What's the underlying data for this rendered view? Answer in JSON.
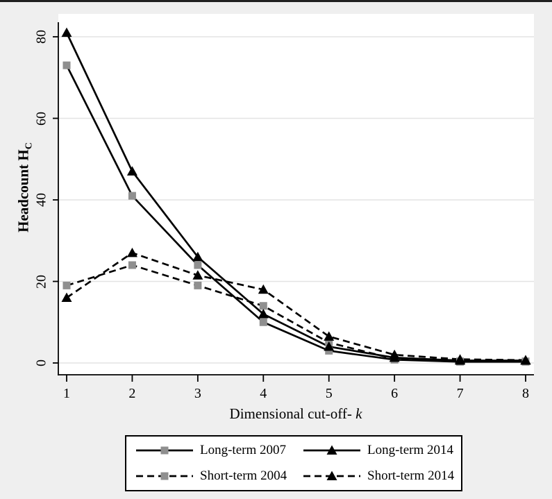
{
  "colors": {
    "background": "#efefef",
    "plot_bg": "#ffffff",
    "grid": "#e3e3e3",
    "axis": "#000000",
    "line": "#000000",
    "square_marker": "#8f8f8f",
    "triangle_marker": "#000000",
    "top_border": "#1f1f1f",
    "legend_bg": "#ffffff",
    "legend_border": "#000000"
  },
  "chart_data": {
    "type": "line",
    "title": "",
    "xlabel": "Dimensional cut-off- k",
    "ylabel": "Headcount Hc",
    "x": [
      1,
      2,
      3,
      4,
      5,
      6,
      7,
      8
    ],
    "xticks": [
      1,
      2,
      3,
      4,
      5,
      6,
      7,
      8
    ],
    "yticks": [
      0,
      20,
      40,
      60,
      80
    ],
    "xtick_labels": [
      "1",
      "2",
      "3",
      "4",
      "5",
      "6",
      "7",
      "8"
    ],
    "ytick_labels": [
      "0",
      "20",
      "40",
      "60",
      "80"
    ],
    "ylim": [
      -3,
      86
    ],
    "grid": true,
    "legend_position": "bottom",
    "series": [
      {
        "name": "Long-term 2007",
        "style": "solid",
        "marker": "square",
        "marker_color": "#8f8f8f",
        "values": [
          73,
          41,
          24,
          10,
          3,
          0.8,
          0.3,
          0.3
        ]
      },
      {
        "name": "Short-term 2004",
        "style": "dashed",
        "marker": "square",
        "marker_color": "#8f8f8f",
        "values": [
          19,
          24,
          19,
          14,
          5,
          1,
          0.4,
          0.4
        ]
      },
      {
        "name": "Long-term 2014",
        "style": "solid",
        "marker": "triangle",
        "marker_color": "#000000",
        "values": [
          81,
          47,
          26,
          12,
          4,
          1.3,
          0.6,
          0.6
        ]
      },
      {
        "name": "Short-term 2014",
        "style": "dashed",
        "marker": "triangle",
        "marker_color": "#000000",
        "values": [
          16,
          27,
          21.5,
          18,
          6.5,
          2,
          0.9,
          0.7
        ]
      }
    ]
  },
  "labels": {
    "ylabel_main": "Headcount H",
    "ylabel_sub": "C",
    "xlabel_main": "Dimensional cut-off- ",
    "xlabel_var": "k"
  },
  "legend": {
    "items": [
      {
        "label": "Long-term 2007",
        "style": "solid",
        "marker": "square"
      },
      {
        "label": "Long-term 2014",
        "style": "solid",
        "marker": "triangle"
      },
      {
        "label": "Short-term 2004",
        "style": "dashed",
        "marker": "square"
      },
      {
        "label": "Short-term 2014",
        "style": "dashed",
        "marker": "triangle"
      }
    ]
  }
}
